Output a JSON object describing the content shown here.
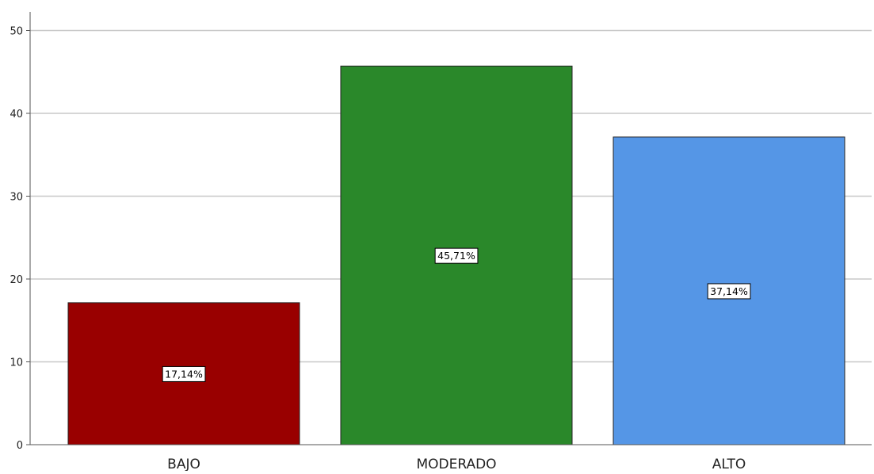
{
  "chart_data": {
    "type": "bar",
    "title": "",
    "xlabel": "",
    "ylabel": "",
    "categories": [
      "BAJO",
      "MODERADO",
      "ALTO"
    ],
    "values": [
      17.14,
      45.71,
      37.14
    ],
    "data_labels": [
      "17,14%",
      "45,71%",
      "37,14%"
    ],
    "colors": [
      "#990000",
      "#2a882a",
      "#5596e6"
    ],
    "ylim": [
      0,
      52
    ],
    "yticks": [
      0,
      10,
      20,
      30,
      40,
      50
    ],
    "grid": true,
    "legend": "none"
  }
}
